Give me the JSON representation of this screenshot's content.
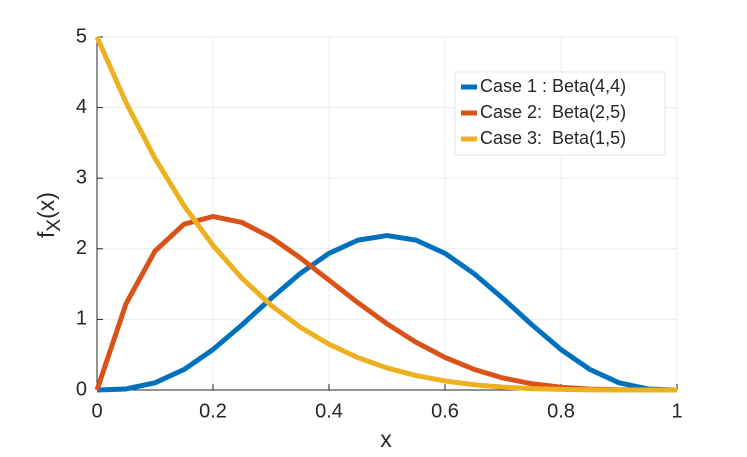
{
  "chart_data": {
    "type": "line",
    "ylabel_parts": [
      "f",
      "X",
      "(x)"
    ],
    "xlabel": "x",
    "x": [
      0,
      0.05,
      0.1,
      0.15,
      0.2,
      0.25,
      0.3,
      0.35,
      0.4,
      0.45,
      0.5,
      0.55,
      0.6,
      0.65,
      0.7,
      0.75,
      0.8,
      0.85,
      0.9,
      0.95,
      1
    ],
    "series": [
      {
        "name": "Case 1 : Beta(4,4)",
        "color": "#0072bd",
        "values": [
          0,
          0.015,
          0.1021,
          0.2902,
          0.5734,
          0.9229,
          1.2965,
          1.6485,
          1.9354,
          2.1225,
          2.1875,
          2.1225,
          1.9354,
          1.6485,
          1.2965,
          0.9229,
          0.5734,
          0.2902,
          0.1021,
          0.015,
          0
        ]
      },
      {
        "name": "Case 2:  Beta(2,5)",
        "color": "#d95319",
        "values": [
          0,
          1.2218,
          1.9683,
          2.349,
          2.4576,
          2.373,
          2.1609,
          1.8744,
          1.5552,
          1.2353,
          0.9375,
          0.6766,
          0.4608,
          0.2926,
          0.1701,
          0.0879,
          0.0384,
          0.0129,
          0.0027,
          0.0002,
          0
        ]
      },
      {
        "name": "Case 3:  Beta(1,5)",
        "color": "#edb120",
        "values": [
          5,
          4.0725,
          3.2805,
          2.6101,
          2.048,
          1.582,
          1.2005,
          0.8926,
          0.648,
          0.4575,
          0.3125,
          0.205,
          0.128,
          0.075,
          0.0405,
          0.0195,
          0.008,
          0.0025,
          0.0005,
          3e-05,
          0
        ]
      }
    ],
    "xlim": [
      0,
      1
    ],
    "xticks": [
      0,
      0.2,
      0.4,
      0.6,
      0.8,
      1
    ],
    "ylim": [
      0,
      5
    ],
    "yticks": [
      0,
      1,
      2,
      3,
      4,
      5
    ],
    "grid": true,
    "legend": "top-right"
  }
}
